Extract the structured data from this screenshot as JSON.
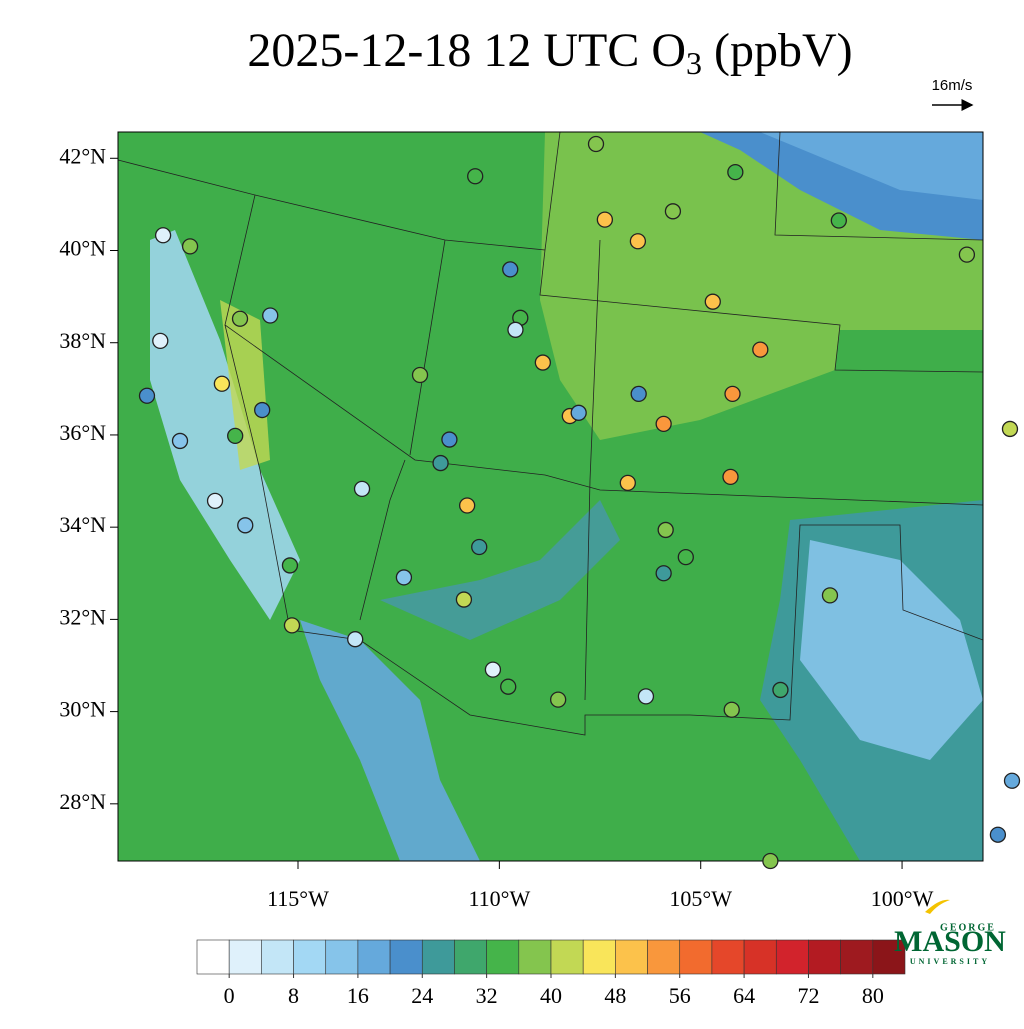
{
  "chart_data": {
    "type": "map-scatter",
    "title_parts": [
      "2025-12-18 12 UTC O",
      "3",
      " (ppbV)"
    ],
    "reference_vector": "16m/s",
    "xlim": [
      -119.47,
      -97.99
    ],
    "ylim": [
      26.76,
      42.57
    ],
    "xticks": [
      {
        "value": -115,
        "label": "115°W"
      },
      {
        "value": -110,
        "label": "110°W"
      },
      {
        "value": -105,
        "label": "105°W"
      },
      {
        "value": -100,
        "label": "100°W"
      }
    ],
    "yticks": [
      {
        "value": 42,
        "label": "42°N"
      },
      {
        "value": 40,
        "label": "40°N"
      },
      {
        "value": 38,
        "label": "38°N"
      },
      {
        "value": 36,
        "label": "36°N"
      },
      {
        "value": 34,
        "label": "34°N"
      },
      {
        "value": 32,
        "label": "32°N"
      },
      {
        "value": 30,
        "label": "30°N"
      },
      {
        "value": 28,
        "label": "28°N"
      }
    ],
    "x": [
      -118.35,
      -117.68,
      -116.44,
      -115.69,
      -116.89,
      -115.89,
      -116.56,
      -117.06,
      -118.75,
      -118.42,
      -117.93,
      -116.31,
      -115.2,
      -115.15,
      -113.58,
      -111.97,
      -110.6,
      -109.73,
      -109.48,
      -109.6,
      -111.24,
      -111.46,
      -113.41,
      -110.8,
      -110.5,
      -112.37,
      -110.88,
      -110.16,
      -109.78,
      -108.54,
      -107.6,
      -107.38,
      -106.56,
      -105.69,
      -104.7,
      -104.21,
      -103.52,
      -108.92,
      -108.25,
      -108.03,
      -106.81,
      -105.87,
      -105.92,
      -105.37,
      -105.92,
      -106.54,
      -104.26,
      -104.14,
      -101.57,
      -98.39,
      -97.32,
      -101.79,
      -106.36,
      -104.23,
      -103.02,
      -103.27,
      -97.62,
      -97.27
    ],
    "y": [
      40.33,
      40.09,
      38.52,
      38.59,
      37.11,
      36.54,
      35.98,
      34.57,
      36.85,
      38.04,
      35.87,
      34.04,
      33.17,
      31.87,
      31.57,
      37.3,
      41.61,
      39.59,
      38.54,
      38.28,
      35.9,
      35.39,
      34.83,
      34.47,
      33.57,
      32.91,
      32.43,
      30.91,
      30.54,
      30.26,
      42.31,
      40.67,
      40.2,
      40.85,
      38.89,
      36.89,
      37.85,
      37.57,
      36.41,
      36.48,
      34.96,
      33.94,
      33.0,
      33.35,
      36.24,
      36.89,
      35.09,
      41.7,
      40.65,
      39.91,
      36.13,
      32.52,
      30.33,
      30.04,
      30.47,
      26.76,
      27.33,
      28.5
    ],
    "values": [
      2,
      38,
      38,
      14,
      46,
      22,
      34,
      2,
      22,
      2,
      12,
      12,
      34,
      42,
      4,
      38,
      34,
      22,
      34,
      4,
      22,
      24,
      4,
      48,
      24,
      14,
      42,
      2,
      34,
      36,
      38,
      48,
      48,
      36,
      48,
      52,
      52,
      50,
      48,
      16,
      48,
      38,
      24,
      34,
      52,
      22,
      52,
      34,
      32,
      36,
      40,
      38,
      4,
      36,
      28,
      36,
      22,
      16
    ],
    "colorbar": {
      "colors": [
        "#ffffff",
        "#dff1fb",
        "#c3e6f7",
        "#a3d8f4",
        "#86c4ea",
        "#65a9dc",
        "#4a8fcc",
        "#3e9a9a",
        "#3fa76c",
        "#45b44a",
        "#84c54e",
        "#c2d854",
        "#f9e55a",
        "#fcc24b",
        "#f9973c",
        "#f26b2e",
        "#e5472a",
        "#d73227",
        "#d2232c",
        "#b31b22",
        "#9e1a1f",
        "#8b1519"
      ],
      "step": 4,
      "ticks": [
        0,
        8,
        16,
        24,
        32,
        40,
        48,
        56,
        64,
        72,
        80
      ]
    },
    "logo": {
      "top": "GEORGE",
      "main": "MASON",
      "bottom": "UNIVERSITY"
    }
  }
}
